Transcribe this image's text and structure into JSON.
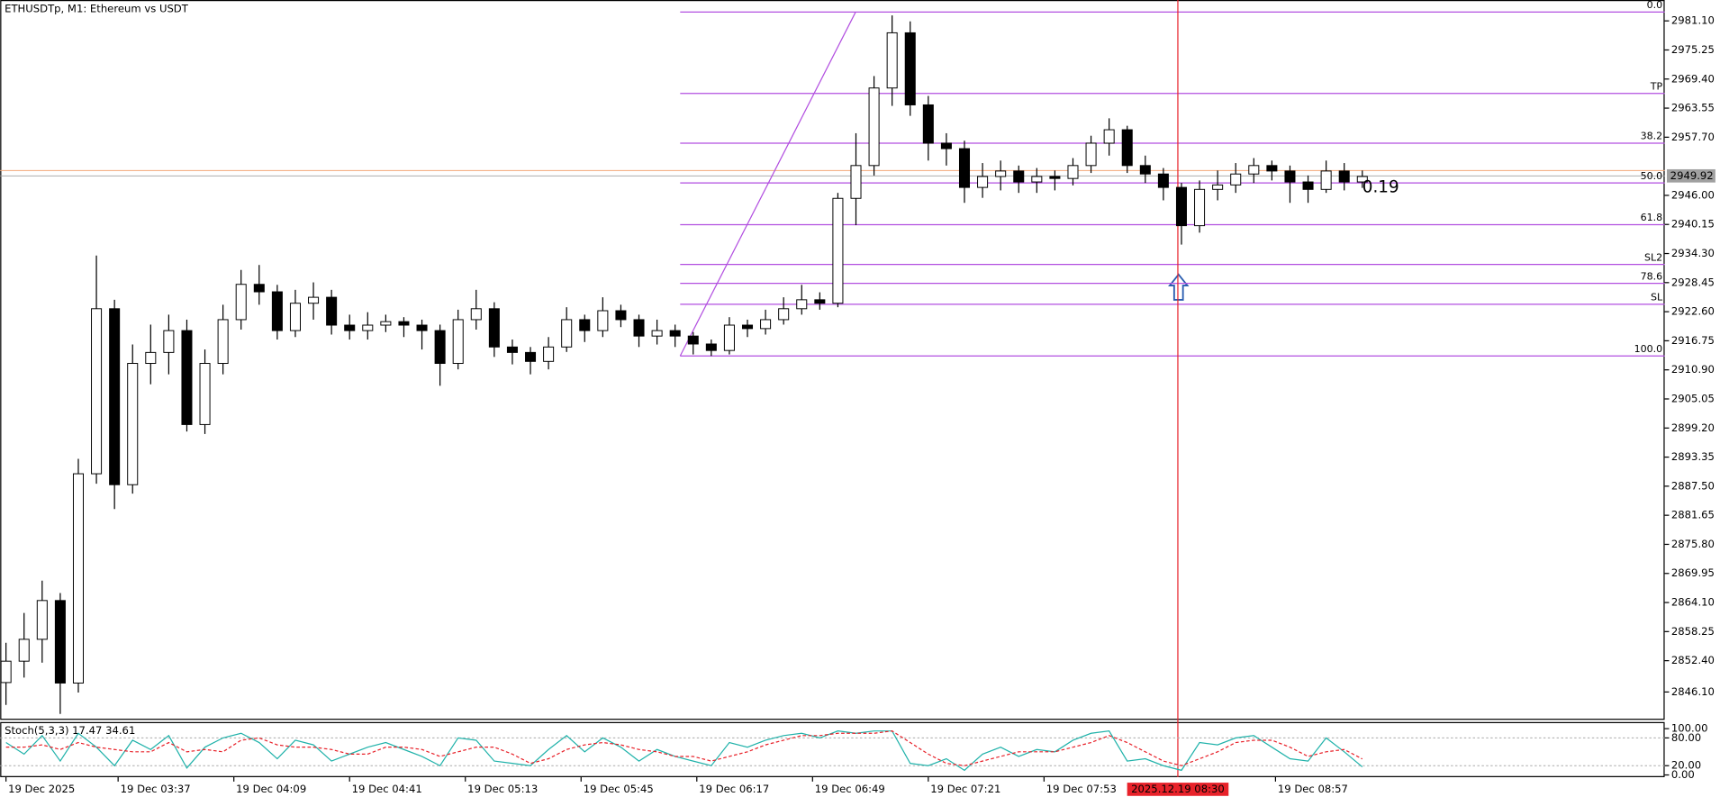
{
  "chart_data": {
    "type": "candlestick",
    "title": "ETHUSDTp, M1:  Ethereum vs USDT",
    "x": [
      6,
      11,
      16,
      21,
      26,
      31,
      36,
      41,
      46,
      51,
      56,
      61,
      66,
      71,
      76,
      81,
      86,
      91,
      96,
      101,
      106,
      111,
      116,
      121,
      126,
      131,
      136,
      141,
      146,
      151,
      156,
      161,
      166,
      171,
      176,
      181,
      186,
      191,
      196,
      201,
      206,
      211,
      216,
      221,
      226,
      231,
      236,
      241,
      246,
      251,
      256,
      261,
      266,
      271,
      276,
      281,
      286,
      291,
      296,
      301,
      306,
      311,
      316,
      321,
      326,
      331,
      336,
      341,
      346,
      351,
      356,
      361,
      366,
      371,
      376,
      381
    ],
    "candles": {
      "open": [
        2848.0,
        2852.3,
        2856.7,
        2864.5,
        2847.9,
        2890.0,
        2923.2,
        2887.8,
        2912.2,
        2914.4,
        2918.8,
        2899.9,
        2912.2,
        2921.0,
        2928.1,
        2926.6,
        2918.8,
        2924.3,
        2925.5,
        2919.9,
        2918.8,
        2919.9,
        2920.6,
        2919.9,
        2918.8,
        2912.2,
        2921.0,
        2923.2,
        2915.5,
        2914.4,
        2912.6,
        2915.5,
        2921.0,
        2918.8,
        2922.8,
        2921.0,
        2917.7,
        2918.8,
        2917.7,
        2916.1,
        2914.8,
        2919.9,
        2919.2,
        2921.0,
        2923.2,
        2925.0,
        2924.3,
        2945.4,
        2952.0,
        2967.6,
        2978.7,
        2964.2,
        2956.5,
        2955.4,
        2947.6,
        2949.8,
        2950.9,
        2948.7,
        2949.8,
        2949.4,
        2952.0,
        2956.5,
        2959.2,
        2952.0,
        2950.3,
        2947.6,
        2939.9,
        2947.2,
        2948.1,
        2950.3,
        2952.0,
        2950.9,
        2948.7,
        2947.2,
        2950.9,
        2948.7
      ],
      "high": [
        2856.0,
        2862.0,
        2868.5,
        2866.0,
        2893.0,
        2933.9,
        2925.0,
        2916.0,
        2920.0,
        2922.0,
        2921.0,
        2915.0,
        2924.0,
        2931.0,
        2932.0,
        2928.0,
        2927.0,
        2928.5,
        2927.0,
        2922.0,
        2922.5,
        2922.0,
        2921.5,
        2921.0,
        2920.0,
        2923.0,
        2927.0,
        2924.5,
        2917.0,
        2915.5,
        2917.5,
        2923.5,
        2922.0,
        2925.5,
        2924.0,
        2922.0,
        2921.0,
        2920.0,
        2918.5,
        2917.0,
        2921.5,
        2921.0,
        2923.0,
        2925.5,
        2928.0,
        2926.5,
        2946.5,
        2958.5,
        2970.0,
        2982.2,
        2981.0,
        2966.0,
        2958.5,
        2957.0,
        2952.5,
        2953.0,
        2952.0,
        2951.5,
        2951.0,
        2953.5,
        2958.0,
        2961.5,
        2960.0,
        2954.0,
        2951.5,
        2948.5,
        2949.0,
        2951.0,
        2952.5,
        2953.5,
        2953.0,
        2952.0,
        2950.0,
        2953.0,
        2952.5,
        2951.0
      ],
      "low": [
        2843.5,
        2849.0,
        2852.0,
        2841.7,
        2846.0,
        2888.0,
        2882.9,
        2886.0,
        2908.0,
        2910.0,
        2898.5,
        2898.0,
        2910.0,
        2919.0,
        2924.0,
        2917.0,
        2917.5,
        2921.0,
        2918.0,
        2917.0,
        2917.0,
        2918.5,
        2917.5,
        2915.0,
        2907.7,
        2911.0,
        2919.0,
        2913.5,
        2912.0,
        2910.0,
        2911.0,
        2914.5,
        2916.5,
        2917.5,
        2919.5,
        2915.5,
        2916.0,
        2915.5,
        2914.0,
        2913.7,
        2914.0,
        2917.5,
        2918.0,
        2920.0,
        2922.0,
        2923.0,
        2923.5,
        2940.0,
        2950.0,
        2964.0,
        2962.0,
        2953.0,
        2952.0,
        2944.5,
        2945.5,
        2947.0,
        2946.5,
        2946.5,
        2947.0,
        2948.0,
        2950.5,
        2954.0,
        2950.5,
        2948.5,
        2945.0,
        2936.1,
        2938.5,
        2945.0,
        2946.5,
        2948.5,
        2949.0,
        2944.5,
        2944.5,
        2946.5,
        2947.0,
        2947.5
      ],
      "close": [
        2852.3,
        2856.7,
        2864.5,
        2847.9,
        2890.0,
        2923.2,
        2887.8,
        2912.2,
        2914.4,
        2918.8,
        2899.9,
        2912.2,
        2921.0,
        2928.1,
        2926.6,
        2918.8,
        2924.3,
        2925.5,
        2919.9,
        2918.8,
        2919.9,
        2920.6,
        2919.9,
        2918.8,
        2912.2,
        2921.0,
        2923.2,
        2915.5,
        2914.4,
        2912.6,
        2915.5,
        2921.0,
        2918.8,
        2922.8,
        2921.0,
        2917.7,
        2918.8,
        2917.7,
        2916.1,
        2914.8,
        2919.9,
        2919.2,
        2921.0,
        2923.2,
        2925.0,
        2924.3,
        2945.4,
        2952.0,
        2967.6,
        2978.7,
        2964.2,
        2956.5,
        2955.4,
        2947.6,
        2949.8,
        2950.9,
        2948.7,
        2949.8,
        2949.4,
        2952.0,
        2956.5,
        2959.2,
        2952.0,
        2950.3,
        2947.6,
        2939.9,
        2947.2,
        2948.1,
        2950.3,
        2952.0,
        2950.9,
        2948.7,
        2947.2,
        2950.9,
        2948.7,
        2949.8
      ]
    },
    "bull_color": "#ffffff",
    "bear_color": "#000000",
    "xlim": [
      4.4,
      464.6
    ],
    "xticks": [
      {
        "value": 6,
        "label": "19 Dec 2025"
      },
      {
        "value": 37,
        "label": "19 Dec 03:37"
      },
      {
        "value": 69,
        "label": "19 Dec 04:09"
      },
      {
        "value": 101,
        "label": "19 Dec 04:41"
      },
      {
        "value": 133,
        "label": "19 Dec 05:13"
      },
      {
        "value": 165,
        "label": "19 Dec 05:45"
      },
      {
        "value": 197,
        "label": "19 Dec 06:17"
      },
      {
        "value": 229,
        "label": "19 Dec 06:49"
      },
      {
        "value": 261,
        "label": "19 Dec 07:21"
      },
      {
        "value": 293,
        "label": "19 Dec 07:53"
      },
      {
        "value": 357,
        "label": "19 Dec 08:57"
      }
    ],
    "cursor": {
      "value": 330,
      "label": "2025.12.19 08:30",
      "color": "#e8222a"
    },
    "ylim": [
      2840.5,
      2985.3
    ],
    "yticks": [
      {
        "value": 2981.1,
        "label": "2981.10"
      },
      {
        "value": 2975.25,
        "label": "2975.25"
      },
      {
        "value": 2969.4,
        "label": "2969.40"
      },
      {
        "value": 2963.55,
        "label": "2963.55"
      },
      {
        "value": 2957.7,
        "label": "2957.70"
      },
      {
        "value": 2946,
        "label": "2946.00"
      },
      {
        "value": 2940.15,
        "label": "2940.15"
      },
      {
        "value": 2934.3,
        "label": "2934.30"
      },
      {
        "value": 2928.45,
        "label": "2928.45"
      },
      {
        "value": 2922.6,
        "label": "2922.60"
      },
      {
        "value": 2916.75,
        "label": "2916.75"
      },
      {
        "value": 2910.9,
        "label": "2910.90"
      },
      {
        "value": 2905.05,
        "label": "2905.05"
      },
      {
        "value": 2899.2,
        "label": "2899.20"
      },
      {
        "value": 2893.35,
        "label": "2893.35"
      },
      {
        "value": 2887.5,
        "label": "2887.50"
      },
      {
        "value": 2881.65,
        "label": "2881.65"
      },
      {
        "value": 2875.8,
        "label": "2875.80"
      },
      {
        "value": 2869.95,
        "label": "2869.95"
      },
      {
        "value": 2864.1,
        "label": "2864.10"
      },
      {
        "value": 2858.25,
        "label": "2858.25"
      },
      {
        "value": 2852.4,
        "label": "2852.40"
      },
      {
        "value": 2846.1,
        "label": "2846.10"
      }
    ],
    "bid": {
      "value": 2949.92,
      "label": "2949.92",
      "color": "#a0a0a0"
    },
    "ask": {
      "value": 2951.0,
      "color": "#f2a77a"
    },
    "annotation": {
      "text": "0.19",
      "color": "#3a9a7a",
      "x": 381,
      "y": 2947.5
    },
    "fib": {
      "color": "#b24fe0",
      "start_x": 192.4,
      "end_x": 240.9,
      "levels": [
        {
          "label": "0.0",
          "value": 2982.87
        },
        {
          "label": "TP",
          "value": 2966.5
        },
        {
          "label": "38.2",
          "value": 2956.5
        },
        {
          "label": "50.0",
          "value": 2948.5
        },
        {
          "label": "61.8",
          "value": 2940.1
        },
        {
          "label": "SL2",
          "value": 2932.1
        },
        {
          "label": "78.6",
          "value": 2928.3
        },
        {
          "label": "SL",
          "value": 2924.1
        },
        {
          "label": "100.0",
          "value": 2913.7
        }
      ]
    },
    "stoch": {
      "title": "Stoch(5,3,3) 17.47 34.61",
      "ylim": [
        0,
        100
      ],
      "yticks": [
        {
          "value": 100,
          "label": "100.00"
        },
        {
          "value": 80,
          "label": "80.00"
        },
        {
          "value": 20,
          "label": "20.00"
        },
        {
          "value": 0,
          "label": "0.00"
        }
      ],
      "levels": [
        80,
        20
      ],
      "series": [
        {
          "color": "#20b2aa",
          "dashed": false,
          "values": [
            70,
            45,
            85,
            30,
            90,
            60,
            20,
            75,
            55,
            85,
            15,
            60,
            80,
            90,
            70,
            35,
            75,
            65,
            30,
            45,
            60,
            70,
            55,
            40,
            20,
            80,
            75,
            30,
            25,
            20,
            55,
            85,
            50,
            80,
            60,
            30,
            55,
            40,
            30,
            20,
            70,
            60,
            75,
            85,
            90,
            80,
            95,
            90,
            95,
            95,
            25,
            20,
            35,
            10,
            45,
            60,
            40,
            55,
            50,
            75,
            90,
            95,
            30,
            35,
            20,
            10,
            70,
            65,
            80,
            85,
            60,
            35,
            30,
            80,
            50,
            17.47
          ]
        },
        {
          "color": "#e8222a",
          "dashed": true,
          "values": [
            60,
            60,
            65,
            55,
            70,
            60,
            55,
            50,
            50,
            70,
            50,
            55,
            50,
            75,
            80,
            65,
            60,
            60,
            55,
            45,
            45,
            60,
            60,
            55,
            40,
            50,
            60,
            60,
            45,
            25,
            35,
            55,
            65,
            70,
            65,
            55,
            50,
            40,
            40,
            30,
            40,
            50,
            65,
            75,
            85,
            85,
            90,
            90,
            90,
            95,
            70,
            45,
            25,
            20,
            30,
            40,
            50,
            50,
            50,
            60,
            70,
            85,
            70,
            50,
            30,
            20,
            35,
            50,
            70,
            75,
            75,
            60,
            40,
            50,
            55,
            34.61
          ]
        }
      ]
    }
  }
}
